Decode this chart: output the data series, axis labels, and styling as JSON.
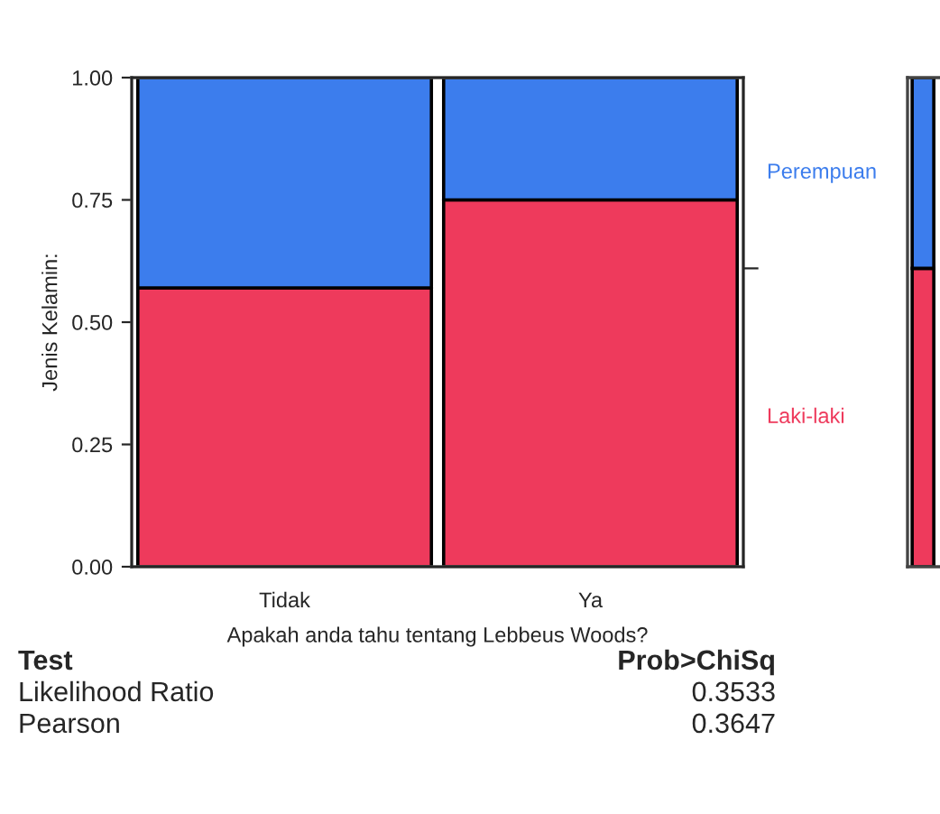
{
  "chart_data": [
    {
      "type": "bar",
      "stacked": true,
      "categories": [
        "Tidak",
        "Ya"
      ],
      "ylim": [
        0,
        1
      ],
      "yticks": [
        {
          "value": 0,
          "label": "0.00"
        },
        {
          "value": 0.25,
          "label": "0.25"
        },
        {
          "value": 0.5,
          "label": "0.50"
        },
        {
          "value": 0.75,
          "label": "0.75"
        },
        {
          "value": 1,
          "label": "1.00"
        }
      ],
      "xlabel": "Apakah anda tahu tentang Lebbeus Woods?",
      "ylabel": "Jenis Kelamin:",
      "series": [
        {
          "color": "#ee3a5c",
          "values": [
            0.57,
            0.75
          ]
        },
        {
          "color": "#3c7ded",
          "values": [
            0.43,
            0.25
          ]
        }
      ],
      "annotations": [
        "Test",
        "Prob>ChiSq",
        "Likelihood Ratio",
        "0.3533",
        "Pearson",
        "0.3647"
      ]
    },
    {
      "type": "bar",
      "stacked": true,
      "categories": [
        null
      ],
      "ylim": [
        0,
        1
      ],
      "series": [
        {
          "name": "Laki-laki",
          "color": "#ee3a5c",
          "values": [
            0.61
          ]
        },
        {
          "name": "Perempuan",
          "color": "#3c7ded",
          "values": [
            0.39
          ]
        }
      ]
    }
  ]
}
